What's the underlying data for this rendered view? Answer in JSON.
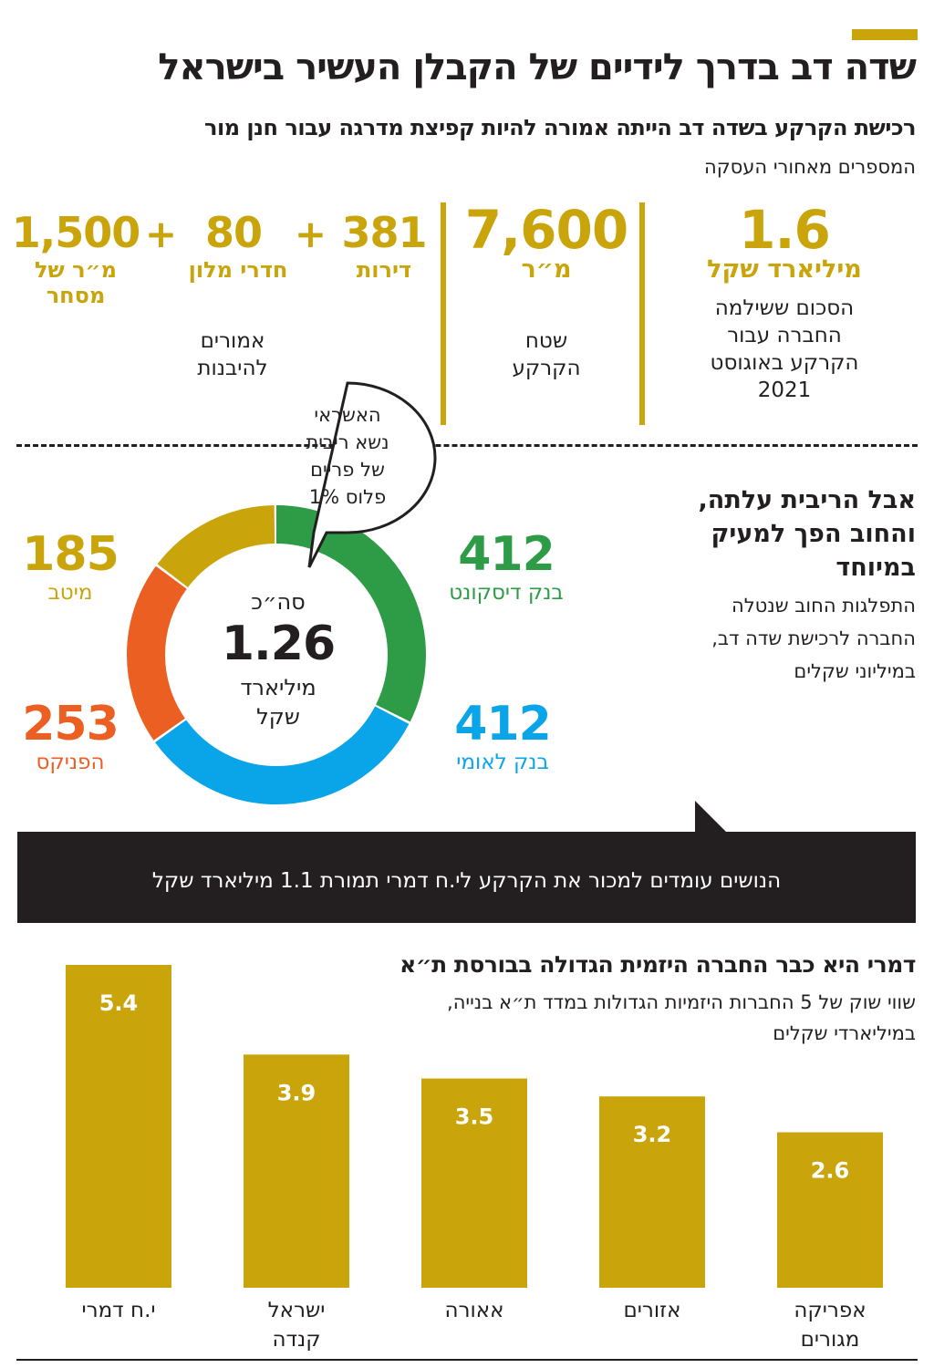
{
  "header": {
    "title": "שדה דב בדרך לידיים של הקבלן העשיר בישראל",
    "subtitle": "רכישת הקרקע בשדה דב הייתה אמורה להיות קפיצת מדרגה עבור חנן מור",
    "kicker": "המספרים מאחורי העסקה"
  },
  "stats": {
    "price": {
      "number": "1.6",
      "unit": "מיליארד שקל",
      "desc": [
        "הסכום ששילמה",
        "החברה עבור",
        "הקרקע באוגוסט",
        "2021"
      ]
    },
    "area": {
      "number": "7,600",
      "unit": "מ״ר",
      "desc": [
        "שטח",
        "הקרקע"
      ]
    },
    "planned": {
      "apartments": {
        "number": "381",
        "unit": "דירות"
      },
      "hotel": {
        "number": "80",
        "unit": "חדרי מלון"
      },
      "commerce": {
        "number": "1,500",
        "unit": [
          "מ״ר של",
          "מסחר"
        ]
      },
      "plus": "+",
      "desc": [
        "אמורים",
        "להיבנות"
      ]
    }
  },
  "debt": {
    "title": [
      "אבל הריבית עלתה,",
      "והחוב הפך למעיק",
      "במיוחד"
    ],
    "desc": [
      "התפלגות החוב שנטלה",
      "החברה לרכישת שדה דב,",
      "במיליוני שקלים"
    ],
    "bubble": [
      "האשראי",
      "נשא ריבית",
      "של פריים",
      "פלוס 1%"
    ],
    "total_label": "סה״כ",
    "total_value": "1.26",
    "total_unit": [
      "מיליארד",
      "שקל"
    ]
  },
  "banner": {
    "text": "הנושים עומדים למכור את הקרקע לי.ח דמרי תמורת 1.1 מיליארד שקל"
  },
  "market": {
    "title": "דמרי היא כבר החברה היזמית הגדולה בבורסת ת״א",
    "desc": [
      "שווי שוק של 5 החברות היזמיות הגדולות במדד ת״א בנייה,",
      "במיליארדי שקלים"
    ]
  },
  "chart_data": [
    {
      "type": "pie",
      "title": "התפלגות החוב שנטלה החברה לרכישת שדה דב, במיליוני שקלים",
      "total": "1.26 מיליארד שקל",
      "categories": [
        "בנק דיסקונט",
        "בנק לאומי",
        "הפניקס",
        "מיטב"
      ],
      "values": [
        412,
        412,
        253,
        185
      ],
      "colors": [
        "#2e9b47",
        "#0aa4e8",
        "#ec5f22",
        "#c9a40a"
      ]
    },
    {
      "type": "bar",
      "title": "שווי שוק של 5 החברות היזמיות הגדולות במדד ת״א בנייה, במיליארדי שקלים",
      "categories": [
        "י.ח דמרי",
        "ישראל קנדה",
        "אאורה",
        "אזורים",
        "אפריקה מגורים"
      ],
      "values": [
        5.4,
        3.9,
        3.5,
        3.2,
        2.6
      ],
      "labels": [
        "5.4",
        "3.9",
        "3.5",
        "3.2",
        "2.6"
      ],
      "ylim": [
        0,
        5.4
      ],
      "color": "#c9a40a"
    }
  ]
}
